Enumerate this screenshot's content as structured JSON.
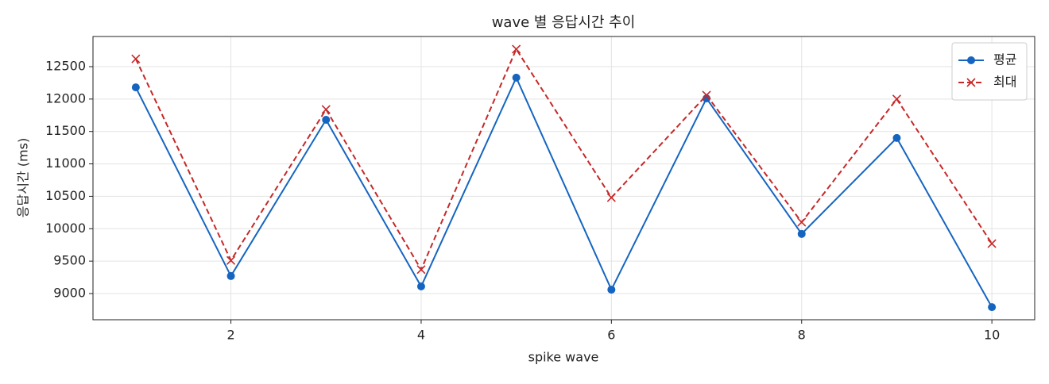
{
  "chart_data": {
    "type": "line",
    "title": "wave 별 응답시간 추이",
    "xlabel": "spike wave",
    "ylabel": "응답시간 (ms)",
    "x": [
      1,
      2,
      3,
      4,
      5,
      6,
      7,
      8,
      9,
      10
    ],
    "series": [
      {
        "name": "평균",
        "color": "#1565c0",
        "marker": "circle",
        "linestyle": "solid",
        "values": [
          12180,
          9270,
          11680,
          9110,
          12330,
          9060,
          12010,
          9920,
          11400,
          8790
        ]
      },
      {
        "name": "최대",
        "color": "#c62828",
        "marker": "x",
        "linestyle": "dashed",
        "values": [
          12620,
          9510,
          11840,
          9370,
          12770,
          10480,
          12060,
          10100,
          12000,
          9770
        ]
      }
    ],
    "xlim": [
      0.55,
      10.45
    ],
    "xticks": [
      2,
      4,
      6,
      8,
      10
    ],
    "ylim": [
      8596,
      12965
    ],
    "yticks": [
      9000,
      9500,
      10000,
      10500,
      11000,
      11500,
      12000,
      12500
    ],
    "grid": true,
    "legend": "upper right"
  }
}
